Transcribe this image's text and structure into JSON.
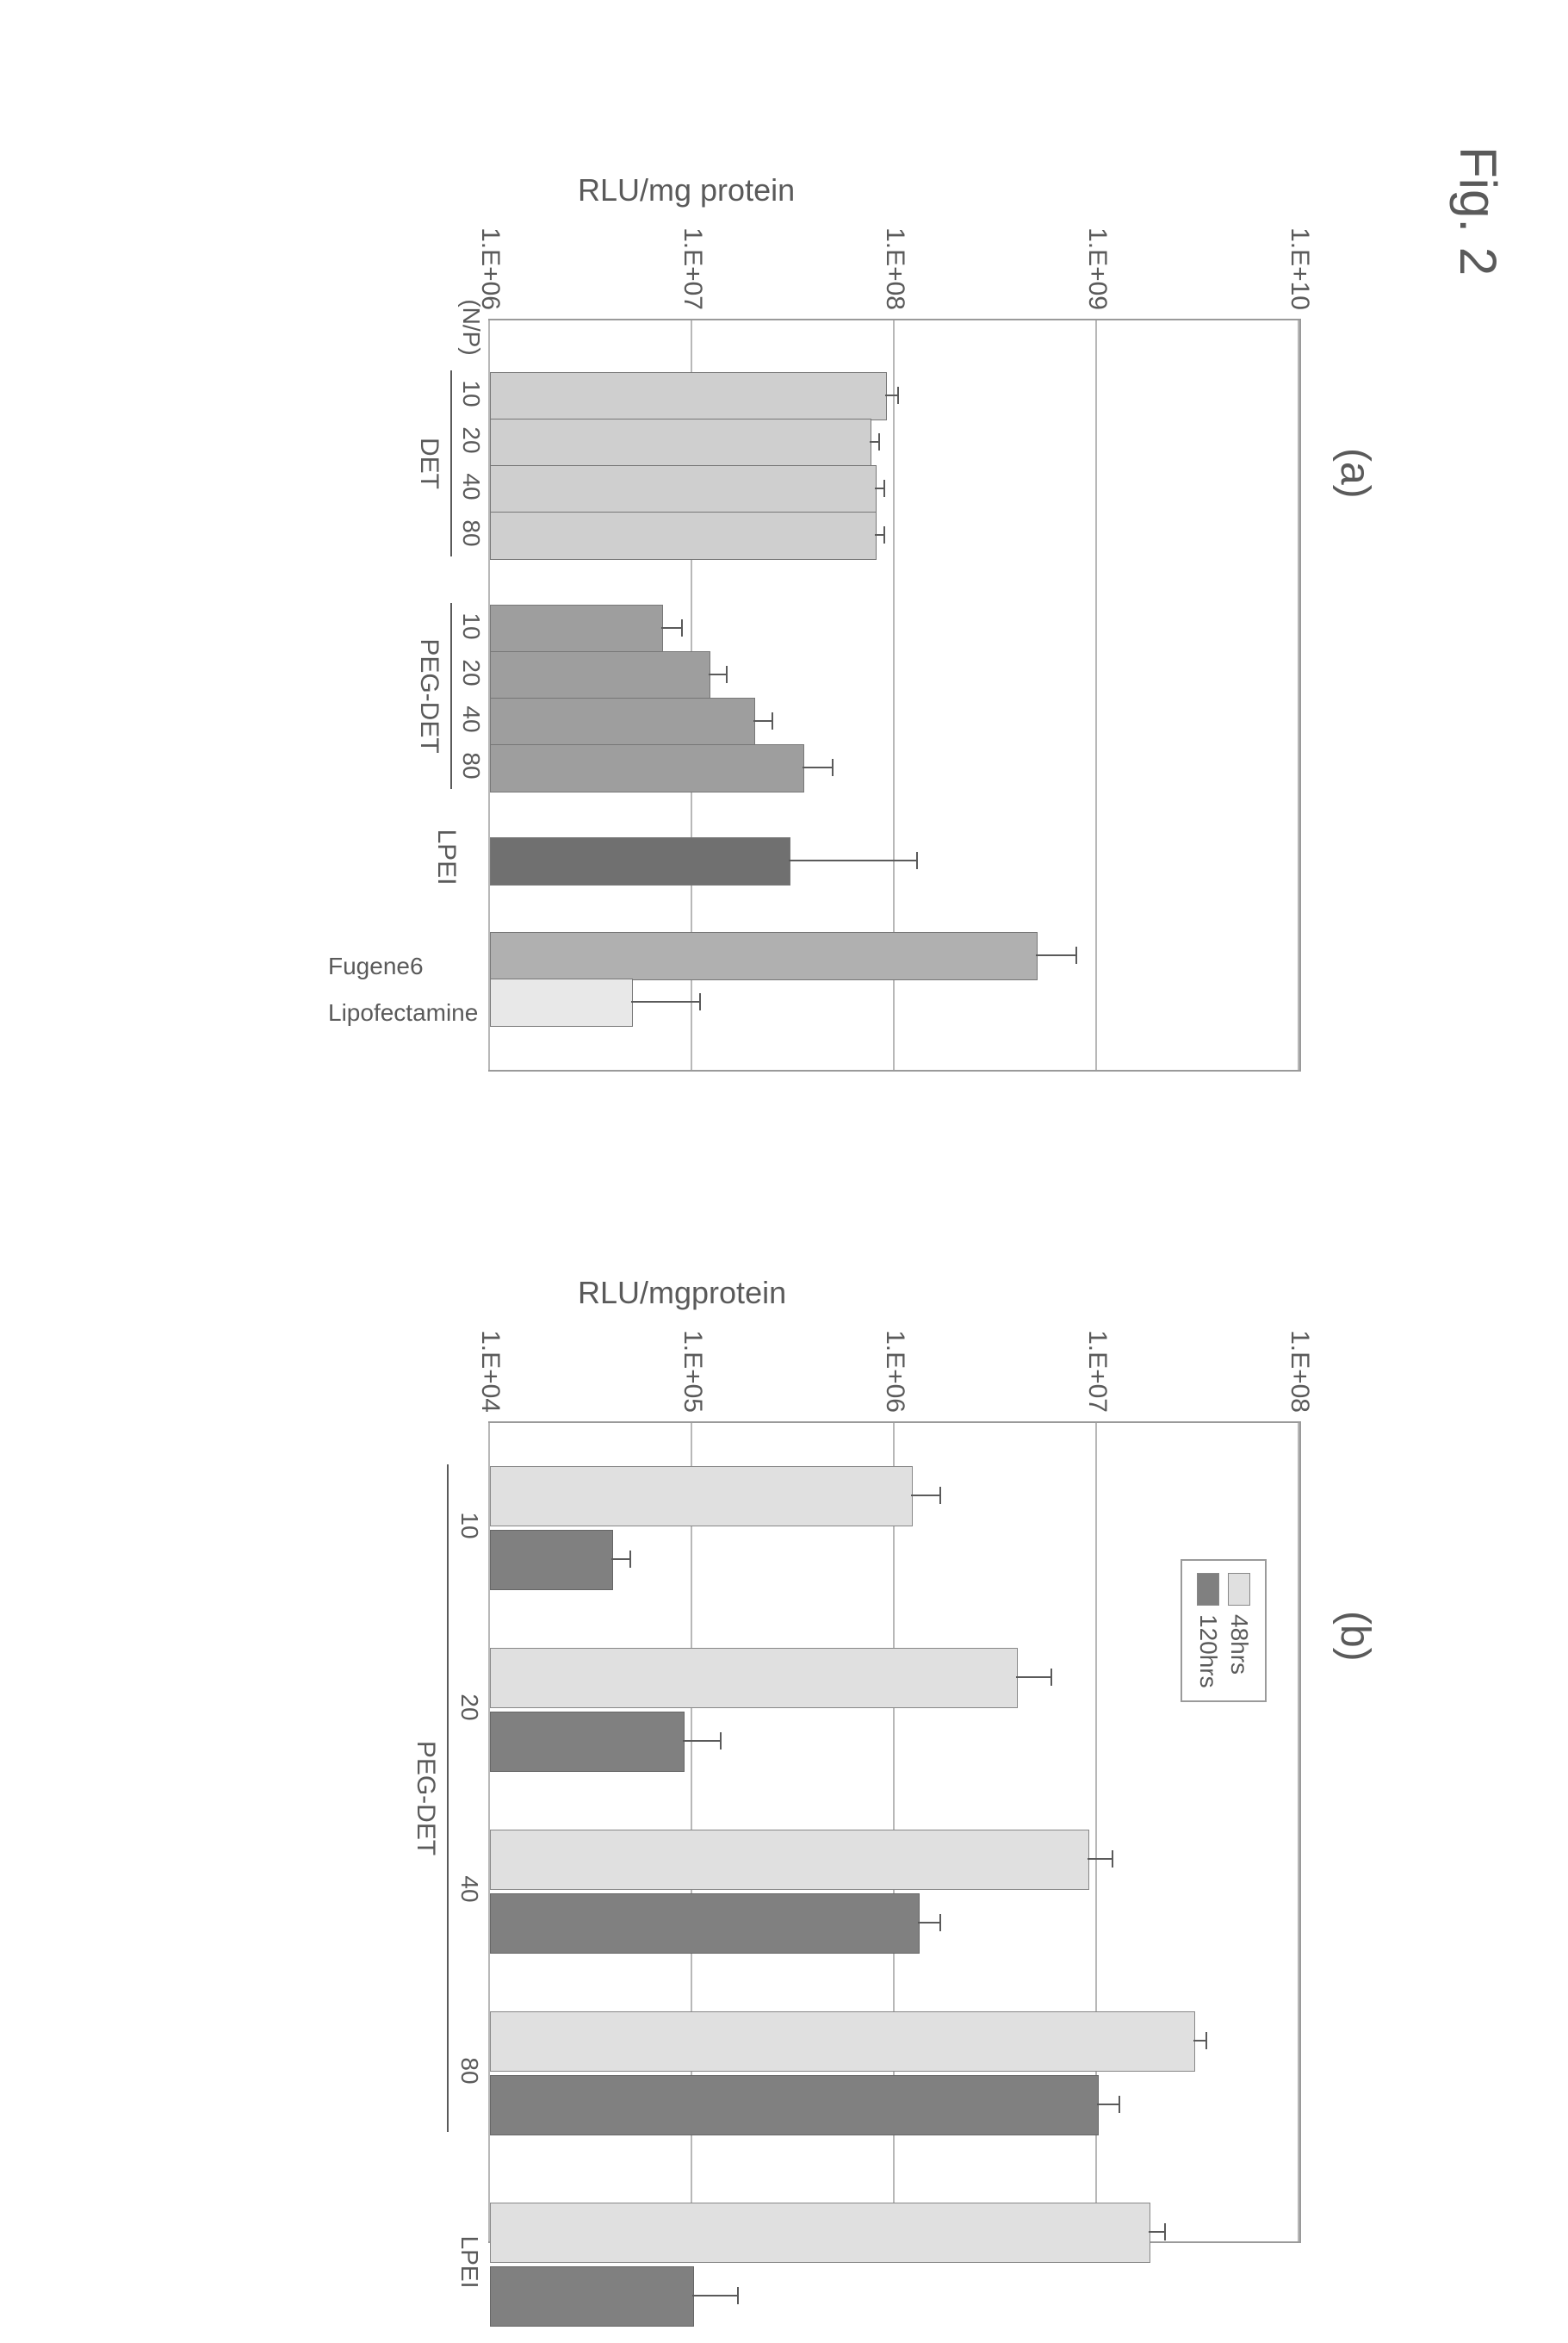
{
  "figure_title": "Fig. 2",
  "panel_a": {
    "label": "(a)",
    "ylabel": "RLU/mg protein",
    "chart": {
      "type": "bar",
      "ylim": [
        1000000.0,
        10000000000.0
      ],
      "yticks": [
        "1.E+06",
        "1.E+07",
        "1.E+08",
        "1.E+09",
        "1.E+10"
      ],
      "grid_color": "#b8b8b8",
      "border_color": "#9a9a9a",
      "background_color": "#ffffff",
      "np_label": "(N/P)",
      "groups": [
        {
          "name": "DET",
          "color": "#cfcfcf",
          "bars": [
            {
              "cat": "10",
              "value": 90000000.0,
              "err": 15000000.0
            },
            {
              "cat": "20",
              "value": 75000000.0,
              "err": 10000000.0
            },
            {
              "cat": "40",
              "value": 80000000.0,
              "err": 10000000.0
            },
            {
              "cat": "80",
              "value": 80000000.0,
              "err": 10000000.0
            }
          ]
        },
        {
          "name": "PEG-DET",
          "color": "#9e9e9e",
          "bars": [
            {
              "cat": "10",
              "value": 7000000.0,
              "err": 2000000.0
            },
            {
              "cat": "20",
              "value": 12000000.0,
              "err": 3000000.0
            },
            {
              "cat": "40",
              "value": 20000000.0,
              "err": 5000000.0
            },
            {
              "cat": "80",
              "value": 35000000.0,
              "err": 15000000.0
            }
          ]
        },
        {
          "name": "LPEI",
          "color": "#707070",
          "bars": [
            {
              "cat": "",
              "value": 30000000.0,
              "err": 100000000.0
            }
          ]
        },
        {
          "name": "",
          "bars": [
            {
              "cat": "Fugene6",
              "value": 500000000.0,
              "err": 300000000.0,
              "color": "#b0b0b0"
            },
            {
              "cat": "Lipofectamine",
              "value": 5000000.0,
              "err": 6000000.0,
              "color": "#e8e8e8"
            }
          ]
        }
      ]
    }
  },
  "panel_b": {
    "label": "(b)",
    "ylabel": "RLU/mgprotein",
    "chart": {
      "type": "grouped-bar",
      "ylim": [
        10000.0,
        100000000.0
      ],
      "yticks": [
        "1.E+04",
        "1.E+05",
        "1.E+06",
        "1.E+07",
        "1.E+08"
      ],
      "grid_color": "#b8b8b8",
      "border_color": "#9a9a9a",
      "background_color": "#ffffff",
      "legend": [
        {
          "label": "48hrs",
          "color": "#e0e0e0"
        },
        {
          "label": "120hrs",
          "color": "#808080"
        }
      ],
      "group_name": "PEG-DET",
      "categories": [
        {
          "cat": "10",
          "v48": 1200000.0,
          "e48": 500000.0,
          "v120": 40000.0,
          "e120": 10000.0,
          "in_group": true
        },
        {
          "cat": "20",
          "v48": 4000000.0,
          "e48": 2000000.0,
          "v120": 90000.0,
          "e120": 50000.0,
          "in_group": true
        },
        {
          "cat": "40",
          "v48": 9000000.0,
          "e48": 3000000.0,
          "v120": 1300000.0,
          "e120": 400000.0,
          "in_group": true
        },
        {
          "cat": "80",
          "v48": 30000000.0,
          "e48": 5000000.0,
          "v120": 10000000.0,
          "e120": 3000000.0,
          "in_group": true
        },
        {
          "cat": "LPEI",
          "v48": 18000000.0,
          "e48": 4000000.0,
          "v120": 100000.0,
          "e120": 70000.0,
          "in_group": false
        }
      ]
    }
  },
  "colors": {
    "text": "#5a5a5a",
    "border": "#9a9a9a",
    "grid": "#b8b8b8"
  },
  "fonts": {
    "title_pt": 60,
    "label_pt": 36,
    "tick_pt": 30
  }
}
